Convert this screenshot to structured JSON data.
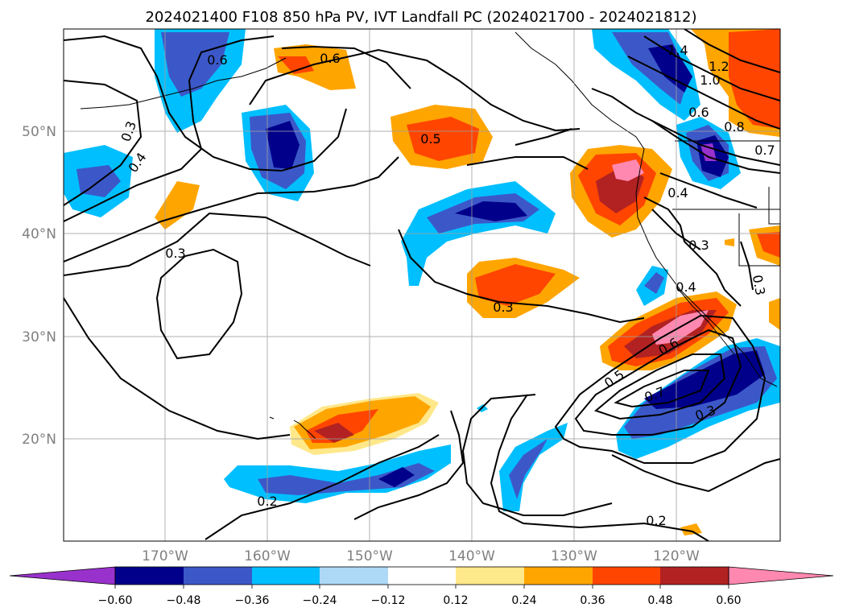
{
  "title": "2024021400 F108 850 hPa PV, IVT Landfall PC (2024021700 - 2024021812)",
  "lat_labels": [
    "50°N",
    "40°N",
    "30°N",
    "20°N"
  ],
  "lon_labels": [
    "170°W",
    "160°W",
    "150°W",
    "140°W",
    "130°W",
    "120°W"
  ],
  "colorbar": {
    "ticks": [
      "−0.60",
      "−0.48",
      "−0.36",
      "−0.24",
      "−0.12",
      "0.12",
      "0.24",
      "0.36",
      "0.48",
      "0.60"
    ],
    "colors": [
      "#9932CC",
      "#00008B",
      "#3C58C8",
      "#00BFFF",
      "#ADD8F6",
      "#FFFFFF",
      "#FFE88A",
      "#FFA500",
      "#FF4500",
      "#B22222",
      "#FF88B0"
    ]
  },
  "contour_labels": [
    "0.6",
    "0.6",
    "0.3",
    "0.4",
    "0.5",
    "0.3",
    "0.3",
    "1.4",
    "1.2",
    "1.0",
    "0.6",
    "0.8",
    "0.7",
    "0.4",
    "0.3",
    "0.3",
    "0.4",
    "0.6",
    "0.5",
    "0.7",
    "0.3",
    "0.2",
    "0.2"
  ]
}
